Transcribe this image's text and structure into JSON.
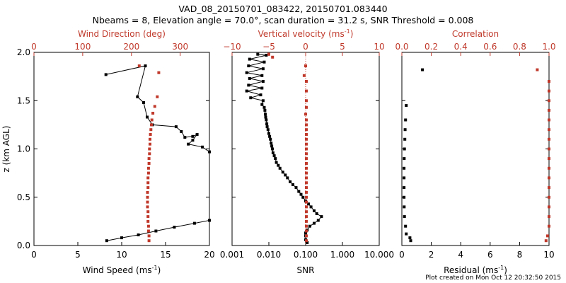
{
  "title": {
    "line1": "VAD_08_20150701_083422, 20150701.083440",
    "line2": "Nbeams = 8, Elevation angle = 70.0°, scan duration = 31.2 s, SNR Threshold = 0.008"
  },
  "footer": "Plot created on Mon Oct 12 20:32:50 2015",
  "colors": {
    "black_series": "#000000",
    "red_series": "#c0392b"
  },
  "chart_data": [
    {
      "type": "scatter",
      "panel": "wind",
      "ylabel": "z (km AGL)",
      "ylim": [
        0,
        2
      ],
      "yticks": [
        "0.0",
        "0.5",
        "1.0",
        "1.5",
        "2.0"
      ],
      "bottom_axis": {
        "label": "Wind Speed (ms",
        "label_sup": "-1",
        "label_end": ")",
        "lim": [
          0,
          20
        ],
        "ticks": [
          "0",
          "5",
          "10",
          "15",
          "20"
        ]
      },
      "top_axis": {
        "label": "Wind Direction (deg)",
        "lim": [
          0,
          360
        ],
        "ticks": [
          "0",
          "100",
          "200",
          "300"
        ]
      },
      "series": [
        {
          "name": "Wind Speed",
          "axis": "bottom",
          "color": "#000000",
          "connected": true,
          "points": [
            [
              8.2,
              1.77
            ],
            [
              12.7,
              1.86
            ],
            [
              11.8,
              1.54
            ],
            [
              12.5,
              1.48
            ],
            [
              12.9,
              1.33
            ],
            [
              13.5,
              1.25
            ],
            [
              16.2,
              1.23
            ],
            [
              16.8,
              1.18
            ],
            [
              17.2,
              1.12
            ],
            [
              18.1,
              1.13
            ],
            [
              18.6,
              1.15
            ],
            [
              18.1,
              1.09
            ],
            [
              17.6,
              1.05
            ],
            [
              19.2,
              1.02
            ],
            [
              20,
              0.97
            ],
            [
              20,
              0.26
            ],
            [
              18.3,
              0.23
            ],
            [
              16.0,
              0.19
            ],
            [
              13.9,
              0.15
            ],
            [
              11.9,
              0.11
            ],
            [
              10.0,
              0.08
            ],
            [
              8.3,
              0.05
            ]
          ]
        },
        {
          "name": "Wind Direction",
          "axis": "top",
          "color": "#c0392b",
          "connected": false,
          "points": [
            [
              216,
              1.86
            ],
            [
              256,
              1.79
            ],
            [
              253,
              1.54
            ],
            [
              248,
              1.44
            ],
            [
              244,
              1.37
            ],
            [
              242,
              1.3
            ],
            [
              241,
              1.25
            ],
            [
              240,
              1.2
            ],
            [
              239,
              1.15
            ],
            [
              238,
              1.1
            ],
            [
              238,
              1.05
            ],
            [
              237,
              1.0
            ],
            [
              237,
              0.95
            ],
            [
              236,
              0.9
            ],
            [
              236,
              0.85
            ],
            [
              235,
              0.8
            ],
            [
              235,
              0.75
            ],
            [
              234,
              0.7
            ],
            [
              234,
              0.65
            ],
            [
              234,
              0.6
            ],
            [
              233,
              0.55
            ],
            [
              233,
              0.5
            ],
            [
              233,
              0.45
            ],
            [
              233,
              0.4
            ],
            [
              234,
              0.35
            ],
            [
              234,
              0.3
            ],
            [
              234,
              0.25
            ],
            [
              235,
              0.2
            ],
            [
              235,
              0.15
            ],
            [
              236,
              0.1
            ],
            [
              236,
              0.05
            ]
          ]
        }
      ]
    },
    {
      "type": "scatter",
      "panel": "velocity",
      "bottom_axis": {
        "label": "SNR",
        "scale": "log",
        "lim": [
          0.001,
          10
        ],
        "ticks": [
          "0.001",
          "0.010",
          "0.100",
          "1.000",
          "10.000"
        ]
      },
      "top_axis": {
        "label": "Vertical velocity (ms",
        "label_sup": "-1",
        "label_end": ")",
        "lim": [
          -10,
          10
        ],
        "ticks": [
          "−10",
          "−5",
          "0",
          "5",
          "10"
        ]
      },
      "reference_line": {
        "axis": "top",
        "value": 0,
        "style": "dotted",
        "color": "#c0392b"
      },
      "series": [
        {
          "name": "SNR",
          "axis": "bottom",
          "color": "#000000",
          "connected": true,
          "points": [
            [
              0.005,
              1.98
            ],
            [
              0.0085,
              1.97
            ],
            [
              0.003,
              1.93
            ],
            [
              0.0075,
              1.9
            ],
            [
              0.0028,
              1.86
            ],
            [
              0.007,
              1.83
            ],
            [
              0.0025,
              1.79
            ],
            [
              0.0065,
              1.76
            ],
            [
              0.003,
              1.73
            ],
            [
              0.007,
              1.7
            ],
            [
              0.0028,
              1.66
            ],
            [
              0.0065,
              1.63
            ],
            [
              0.0025,
              1.6
            ],
            [
              0.006,
              1.56
            ],
            [
              0.0032,
              1.53
            ],
            [
              0.007,
              1.5
            ],
            [
              0.0065,
              1.46
            ],
            [
              0.0075,
              1.43
            ],
            [
              0.0078,
              1.4
            ],
            [
              0.008,
              1.36
            ],
            [
              0.0082,
              1.33
            ],
            [
              0.0085,
              1.3
            ],
            [
              0.0088,
              1.26
            ],
            [
              0.009,
              1.23
            ],
            [
              0.0095,
              1.2
            ],
            [
              0.01,
              1.16
            ],
            [
              0.0105,
              1.13
            ],
            [
              0.011,
              1.1
            ],
            [
              0.0115,
              1.06
            ],
            [
              0.012,
              1.03
            ],
            [
              0.0125,
              1.0
            ],
            [
              0.013,
              0.96
            ],
            [
              0.014,
              0.93
            ],
            [
              0.015,
              0.9
            ],
            [
              0.016,
              0.86
            ],
            [
              0.018,
              0.83
            ],
            [
              0.02,
              0.8
            ],
            [
              0.024,
              0.76
            ],
            [
              0.028,
              0.73
            ],
            [
              0.032,
              0.7
            ],
            [
              0.038,
              0.66
            ],
            [
              0.045,
              0.63
            ],
            [
              0.055,
              0.6
            ],
            [
              0.065,
              0.56
            ],
            [
              0.075,
              0.53
            ],
            [
              0.085,
              0.5
            ],
            [
              0.1,
              0.46
            ],
            [
              0.12,
              0.43
            ],
            [
              0.14,
              0.4
            ],
            [
              0.17,
              0.36
            ],
            [
              0.2,
              0.33
            ],
            [
              0.27,
              0.3
            ],
            [
              0.22,
              0.26
            ],
            [
              0.17,
              0.23
            ],
            [
              0.13,
              0.2
            ],
            [
              0.11,
              0.16
            ],
            [
              0.1,
              0.13
            ],
            [
              0.1,
              0.1
            ],
            [
              0.1,
              0.06
            ],
            [
              0.11,
              0.03
            ]
          ]
        },
        {
          "name": "Vertical velocity",
          "axis": "top",
          "color": "#c0392b",
          "connected": false,
          "points": [
            [
              -5,
              1.98
            ],
            [
              -4.5,
              1.95
            ],
            [
              0,
              1.86
            ],
            [
              -0.2,
              1.76
            ],
            [
              0.1,
              1.7
            ],
            [
              0.1,
              1.6
            ],
            [
              0.1,
              1.5
            ],
            [
              0.1,
              1.43
            ],
            [
              0,
              1.36
            ],
            [
              0.1,
              1.3
            ],
            [
              0.1,
              1.25
            ],
            [
              0.1,
              1.2
            ],
            [
              0.1,
              1.15
            ],
            [
              0.1,
              1.1
            ],
            [
              0.1,
              1.05
            ],
            [
              0.1,
              1.0
            ],
            [
              0.1,
              0.95
            ],
            [
              0.1,
              0.9
            ],
            [
              0.1,
              0.85
            ],
            [
              0.1,
              0.8
            ],
            [
              0.1,
              0.75
            ],
            [
              0.1,
              0.7
            ],
            [
              0.1,
              0.65
            ],
            [
              0.1,
              0.6
            ],
            [
              0.1,
              0.55
            ],
            [
              0.1,
              0.5
            ],
            [
              0.1,
              0.45
            ],
            [
              0.1,
              0.4
            ],
            [
              0.1,
              0.35
            ],
            [
              0.1,
              0.3
            ],
            [
              0.1,
              0.25
            ],
            [
              0.1,
              0.2
            ],
            [
              0.1,
              0.15
            ],
            [
              0.1,
              0.1
            ],
            [
              0.1,
              0.05
            ]
          ]
        }
      ]
    },
    {
      "type": "scatter",
      "panel": "correlation",
      "bottom_axis": {
        "label": "Residual (ms",
        "label_sup": "-1",
        "label_end": ")",
        "lim": [
          0,
          10
        ],
        "ticks": [
          "0",
          "2",
          "4",
          "6",
          "8",
          "10"
        ]
      },
      "top_axis": {
        "label": "Correlation",
        "lim": [
          0,
          1
        ],
        "ticks": [
          "0.0",
          "0.2",
          "0.4",
          "0.6",
          "0.8",
          "1.0"
        ]
      },
      "series": [
        {
          "name": "Residual",
          "axis": "bottom",
          "color": "#000000",
          "connected": false,
          "points": [
            [
              1.4,
              1.82
            ],
            [
              0.3,
              1.45
            ],
            [
              0.25,
              1.3
            ],
            [
              0.22,
              1.2
            ],
            [
              0.2,
              1.1
            ],
            [
              0.18,
              1.0
            ],
            [
              0.16,
              0.9
            ],
            [
              0.15,
              0.8
            ],
            [
              0.15,
              0.7
            ],
            [
              0.15,
              0.6
            ],
            [
              0.15,
              0.5
            ],
            [
              0.16,
              0.4
            ],
            [
              0.18,
              0.3
            ],
            [
              0.25,
              0.2
            ],
            [
              0.3,
              0.12
            ],
            [
              0.55,
              0.08
            ],
            [
              0.6,
              0.05
            ]
          ]
        },
        {
          "name": "Correlation",
          "axis": "top",
          "color": "#c0392b",
          "connected": false,
          "points": [
            [
              0.92,
              1.82
            ],
            [
              1,
              1.7
            ],
            [
              1,
              1.6
            ],
            [
              1,
              1.5
            ],
            [
              1,
              1.4
            ],
            [
              1,
              1.3
            ],
            [
              1,
              1.2
            ],
            [
              1,
              1.1
            ],
            [
              1,
              1.0
            ],
            [
              1,
              0.9
            ],
            [
              1,
              0.8
            ],
            [
              1,
              0.7
            ],
            [
              1,
              0.6
            ],
            [
              1,
              0.5
            ],
            [
              1,
              0.4
            ],
            [
              1,
              0.3
            ],
            [
              1,
              0.2
            ],
            [
              0.99,
              0.1
            ],
            [
              0.98,
              0.05
            ]
          ]
        }
      ]
    }
  ]
}
